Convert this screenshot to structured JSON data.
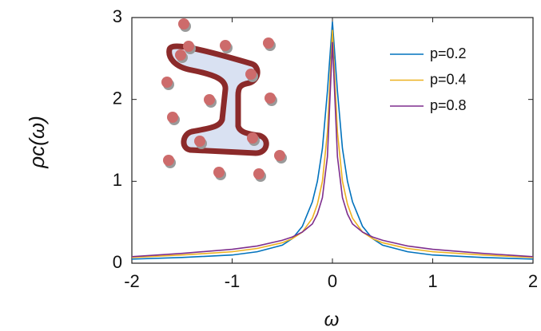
{
  "chart_data": {
    "type": "line",
    "x_label": "ω",
    "y_label": "ρc(ω)",
    "x": [
      -2,
      -1.5,
      -1,
      -0.75,
      -0.5,
      -0.4,
      -0.3,
      -0.2,
      -0.15,
      -0.1,
      -0.05,
      0,
      0.05,
      0.1,
      0.15,
      0.2,
      0.3,
      0.4,
      0.5,
      0.75,
      1,
      1.5,
      2
    ],
    "series": [
      {
        "name": "p=0.2",
        "color": "#0072bd",
        "values": [
          0.05,
          0.07,
          0.1,
          0.14,
          0.22,
          0.3,
          0.45,
          0.75,
          1.0,
          1.4,
          2.1,
          2.95,
          2.1,
          1.4,
          1.0,
          0.75,
          0.45,
          0.3,
          0.22,
          0.14,
          0.1,
          0.07,
          0.05
        ]
      },
      {
        "name": "p=0.4",
        "color": "#edb120",
        "values": [
          0.07,
          0.1,
          0.14,
          0.18,
          0.25,
          0.3,
          0.38,
          0.55,
          0.72,
          1.0,
          1.6,
          2.85,
          1.6,
          1.0,
          0.72,
          0.55,
          0.38,
          0.3,
          0.25,
          0.18,
          0.14,
          0.1,
          0.07
        ]
      },
      {
        "name": "p=0.8",
        "color": "#7e2f8e",
        "values": [
          0.08,
          0.12,
          0.17,
          0.21,
          0.28,
          0.32,
          0.38,
          0.48,
          0.6,
          0.8,
          1.3,
          2.7,
          1.3,
          0.8,
          0.6,
          0.48,
          0.38,
          0.32,
          0.28,
          0.21,
          0.17,
          0.12,
          0.08
        ]
      }
    ],
    "xlim": [
      -2,
      2
    ],
    "xticks": [
      -2,
      -1,
      0,
      1,
      2
    ],
    "ylim": [
      0,
      3
    ],
    "yticks": [
      0,
      1,
      2,
      3
    ],
    "grid": false,
    "legend": "upper right"
  }
}
